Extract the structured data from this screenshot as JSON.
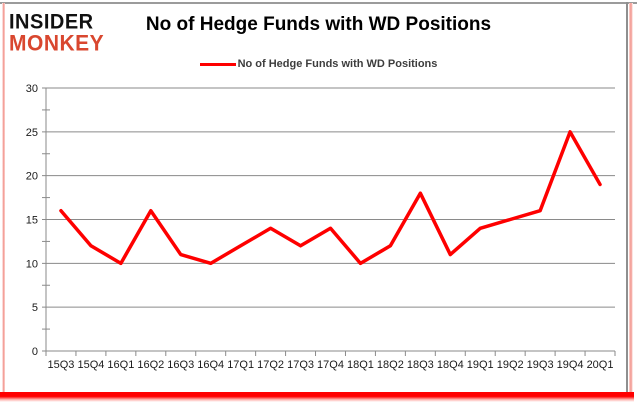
{
  "logo": {
    "line1": "INSIDER",
    "line2": "MONKEY"
  },
  "header": {
    "title": "No of Hedge Funds with WD Positions"
  },
  "legend": {
    "label": "No of Hedge Funds with WD Positions"
  },
  "colors": {
    "series_line": "#fe0000",
    "gridline": "#8a8a8a",
    "axis_text": "#1a1a1a",
    "title_text": "#000000",
    "legend_text": "#3d3d3d",
    "logo_black": "#111111",
    "logo_red": "#d9472f",
    "frame_gray": "#9b9b9b",
    "frame_pink": "#f2928a",
    "frame_red": "#ff0000"
  },
  "chart_data": {
    "type": "line",
    "title": "No of Hedge Funds with WD Positions",
    "series_name": "No of Hedge Funds with WD Positions",
    "categories": [
      "15Q3",
      "15Q4",
      "16Q1",
      "16Q2",
      "16Q3",
      "16Q4",
      "17Q1",
      "17Q2",
      "17Q3",
      "17Q4",
      "18Q1",
      "18Q2",
      "18Q3",
      "18Q4",
      "19Q1",
      "19Q2",
      "19Q3",
      "19Q4",
      "20Q1"
    ],
    "values": [
      16,
      12,
      10,
      16,
      11,
      10,
      12,
      14,
      12,
      14,
      10,
      12,
      18,
      11,
      14,
      15,
      16,
      25,
      19
    ],
    "xlabel": "",
    "ylabel": "",
    "ylim": [
      0,
      30
    ],
    "yticks": [
      0,
      5,
      10,
      15,
      20,
      25,
      30
    ],
    "ytick_minor_step": 2.5,
    "grid": true,
    "legend_position": "top-center"
  }
}
